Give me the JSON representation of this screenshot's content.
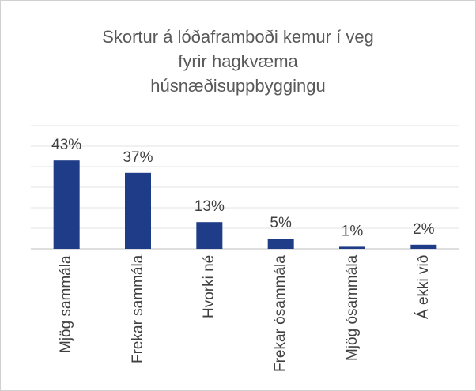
{
  "chart_data": {
    "type": "bar",
    "title": "Skortur á lóðaframboði kemur í veg\nfyrir hagkvæma\nhúsnæðisuppbyggingu",
    "categories": [
      "Mjög sammála",
      "Frekar sammála",
      "Hvorki né",
      "Frekar ósammála",
      "Mjög ósammála",
      "Á ekki við"
    ],
    "values": [
      43,
      37,
      13,
      5,
      1,
      2
    ],
    "value_labels": [
      "43%",
      "37%",
      "13%",
      "5%",
      "1%",
      "2%"
    ],
    "color": "#1f3c88",
    "ylim": [
      0,
      60
    ],
    "yticks": [
      0,
      10,
      20,
      30,
      40,
      50,
      60
    ],
    "grid": true
  }
}
